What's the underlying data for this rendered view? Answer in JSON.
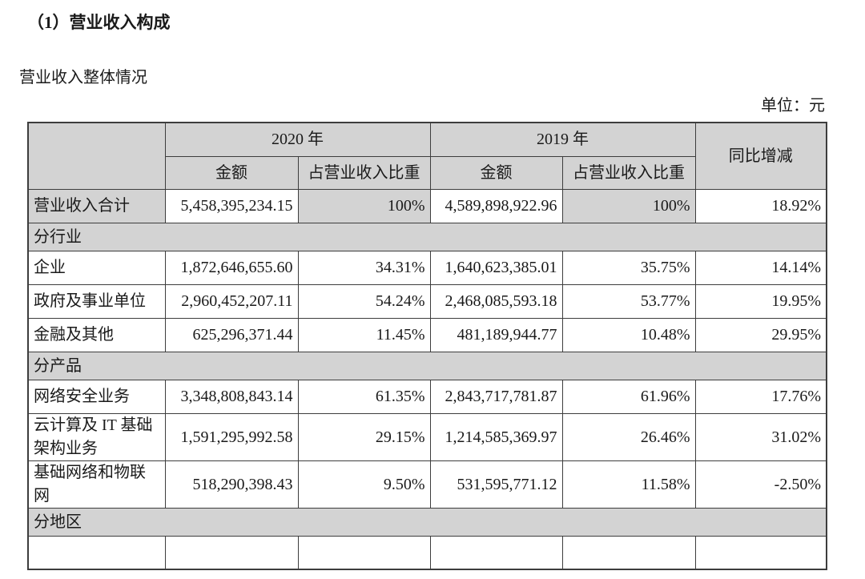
{
  "page": {
    "title": "（1）营业收入构成",
    "subtitle": "营业收入整体情况",
    "unit_label": "单位：元"
  },
  "colors": {
    "header_bg": "#d3d3d3",
    "border": "#3d3d3d",
    "page_bg": "#ffffff"
  },
  "table": {
    "header": {
      "corner": "",
      "year_2020": "2020 年",
      "year_2019": "2019 年",
      "amount_label": "金额",
      "share_label": "占营业收入比重",
      "yoy_label": "同比增减"
    },
    "rows": [
      {
        "type": "total",
        "label": "营业收入合计",
        "amount_2020": "5,458,395,234.15",
        "share_2020": "100%",
        "amount_2019": "4,589,898,922.96",
        "share_2019": "100%",
        "yoy": "18.92%"
      },
      {
        "type": "section",
        "label": "分行业"
      },
      {
        "type": "data",
        "label": "企业",
        "amount_2020": "1,872,646,655.60",
        "share_2020": "34.31%",
        "amount_2019": "1,640,623,385.01",
        "share_2019": "35.75%",
        "yoy": "14.14%"
      },
      {
        "type": "data",
        "label": "政府及事业单位",
        "amount_2020": "2,960,452,207.11",
        "share_2020": "54.24%",
        "amount_2019": "2,468,085,593.18",
        "share_2019": "53.77%",
        "yoy": "19.95%"
      },
      {
        "type": "data",
        "label": "金融及其他",
        "amount_2020": "625,296,371.44",
        "share_2020": "11.45%",
        "amount_2019": "481,189,944.77",
        "share_2019": "10.48%",
        "yoy": "29.95%"
      },
      {
        "type": "section",
        "label": "分产品"
      },
      {
        "type": "data",
        "label": "网络安全业务",
        "amount_2020": "3,348,808,843.14",
        "share_2020": "61.35%",
        "amount_2019": "2,843,717,781.87",
        "share_2019": "61.96%",
        "yoy": "17.76%"
      },
      {
        "type": "data",
        "label": "云计算及 IT 基础架构业务",
        "amount_2020": "1,591,295,992.58",
        "share_2020": "29.15%",
        "amount_2019": "1,214,585,369.97",
        "share_2019": "26.46%",
        "yoy": "31.02%"
      },
      {
        "type": "data",
        "label": "基础网络和物联网",
        "amount_2020": "518,290,398.43",
        "share_2020": "9.50%",
        "amount_2019": "531,595,771.12",
        "share_2019": "11.58%",
        "yoy": "-2.50%"
      },
      {
        "type": "section",
        "label": "分地区"
      },
      {
        "type": "partial"
      }
    ]
  }
}
